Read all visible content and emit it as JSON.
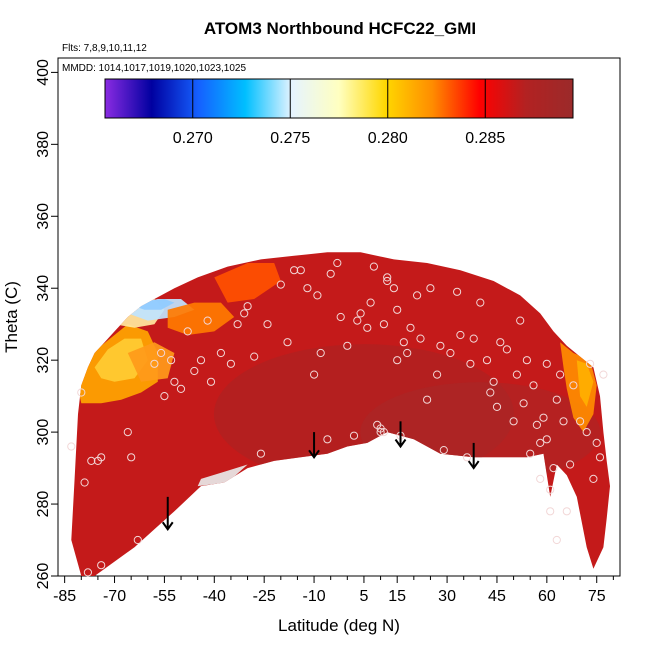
{
  "chart_data": {
    "type": "heatmap",
    "title": "ATOM3 Northbound HCFC22_GMI",
    "flights_note": "Flts: 7,8,9,10,11,12",
    "mmdd_note": "MMDD: 1014,1017,1019,1020,1023,1025",
    "xlabel": "Latitude (deg N)",
    "ylabel": "Theta (C)",
    "xlim": [
      -87,
      82
    ],
    "ylim": [
      260,
      404
    ],
    "x_ticks": [
      "-85",
      "-70",
      "-55",
      "-40",
      "-25",
      "-10",
      "5",
      "15",
      "30",
      "45",
      "60",
      "75"
    ],
    "x_tick_values": [
      -85,
      -70,
      -55,
      -40,
      -25,
      -10,
      5,
      15,
      30,
      45,
      60,
      75
    ],
    "y_ticks": [
      "260",
      "280",
      "300",
      "320",
      "340",
      "360",
      "380",
      "400"
    ],
    "y_tick_values": [
      260,
      280,
      300,
      320,
      340,
      360,
      380,
      400
    ],
    "colorbar": {
      "range": [
        0.2655,
        0.2895
      ],
      "ticks": [
        "0.270",
        "0.275",
        "0.280",
        "0.285"
      ],
      "tick_values": [
        0.27,
        0.275,
        0.28,
        0.285
      ],
      "colors": [
        "#8a2be2",
        "#0000a0",
        "#1560ff",
        "#00bfff",
        "#e6f4ff",
        "#ffffc0",
        "#ffd700",
        "#ff8c00",
        "#ff0000",
        "#b22222",
        "#9b2a2a"
      ]
    },
    "domain_outline": [
      [
        -83,
        270
      ],
      [
        -82,
        287
      ],
      [
        -81,
        305
      ],
      [
        -80,
        313
      ],
      [
        -78,
        318
      ],
      [
        -76,
        322
      ],
      [
        -73,
        325
      ],
      [
        -70,
        328
      ],
      [
        -66,
        332
      ],
      [
        -62,
        335
      ],
      [
        -58,
        337
      ],
      [
        -52,
        340
      ],
      [
        -45,
        343
      ],
      [
        -36,
        346
      ],
      [
        -26,
        348
      ],
      [
        -16,
        349
      ],
      [
        -6,
        350
      ],
      [
        4,
        350
      ],
      [
        14,
        348
      ],
      [
        24,
        347
      ],
      [
        34,
        345
      ],
      [
        44,
        342
      ],
      [
        52,
        338
      ],
      [
        58,
        333
      ],
      [
        62,
        328
      ],
      [
        66,
        324
      ],
      [
        70,
        321
      ],
      [
        74,
        318
      ],
      [
        76,
        310
      ],
      [
        77,
        300
      ],
      [
        78,
        292
      ],
      [
        79,
        285
      ],
      [
        78,
        276
      ],
      [
        77,
        268
      ],
      [
        74,
        262
      ],
      [
        72,
        268
      ],
      [
        69,
        282
      ],
      [
        66,
        288
      ],
      [
        63,
        291
      ],
      [
        61,
        282
      ],
      [
        59,
        294
      ],
      [
        54,
        293
      ],
      [
        46,
        293
      ],
      [
        38,
        293
      ],
      [
        28,
        294
      ],
      [
        20,
        298
      ],
      [
        12,
        300
      ],
      [
        6,
        297
      ],
      [
        0,
        296
      ],
      [
        -6,
        294
      ],
      [
        -14,
        293
      ],
      [
        -22,
        292
      ],
      [
        -30,
        290
      ],
      [
        -37,
        286
      ],
      [
        -44,
        285
      ],
      [
        -52,
        278
      ],
      [
        -58,
        273
      ],
      [
        -64,
        268
      ],
      [
        -70,
        264
      ],
      [
        -76,
        260
      ],
      [
        -80,
        260
      ]
    ],
    "fill_regions": [
      {
        "color": "#ffa500",
        "polygon": [
          [
            -81,
            312
          ],
          [
            -78,
            320
          ],
          [
            -74,
            324
          ],
          [
            -70,
            327
          ],
          [
            -66,
            330
          ],
          [
            -60,
            328
          ],
          [
            -57,
            322
          ],
          [
            -57,
            314
          ],
          [
            -62,
            311
          ],
          [
            -68,
            309
          ],
          [
            -74,
            308
          ],
          [
            -80,
            308
          ]
        ]
      },
      {
        "color": "#ffcc33",
        "polygon": [
          [
            -76,
            318
          ],
          [
            -72,
            323
          ],
          [
            -67,
            326
          ],
          [
            -62,
            326
          ],
          [
            -60,
            320
          ],
          [
            -64,
            315
          ],
          [
            -70,
            314
          ],
          [
            -74,
            315
          ]
        ]
      },
      {
        "color": "#ffe9a0",
        "polygon": [
          [
            -70,
            330
          ],
          [
            -66,
            333
          ],
          [
            -62,
            335
          ],
          [
            -58,
            337
          ],
          [
            -55,
            334
          ],
          [
            -58,
            330
          ],
          [
            -64,
            329
          ]
        ]
      },
      {
        "color": "#bfe4ff",
        "polygon": [
          [
            -66,
            333
          ],
          [
            -62,
            336
          ],
          [
            -57,
            337
          ],
          [
            -50,
            337
          ],
          [
            -46,
            334
          ],
          [
            -52,
            332
          ],
          [
            -60,
            331
          ]
        ]
      },
      {
        "color": "#8fcbff",
        "polygon": [
          [
            -64,
            335
          ],
          [
            -60,
            336.5
          ],
          [
            -55,
            337
          ],
          [
            -52,
            336
          ],
          [
            -56,
            334
          ],
          [
            -61,
            334
          ]
        ]
      },
      {
        "color": "#ff7a00",
        "polygon": [
          [
            -54,
            334
          ],
          [
            -46,
            336
          ],
          [
            -38,
            336
          ],
          [
            -34,
            332
          ],
          [
            -40,
            328
          ],
          [
            -48,
            327
          ],
          [
            -54,
            329
          ]
        ]
      },
      {
        "color": "#ff9a1a",
        "polygon": [
          [
            -66,
            322
          ],
          [
            -58,
            325
          ],
          [
            -52,
            322
          ],
          [
            -54,
            315
          ],
          [
            -62,
            314
          ]
        ]
      },
      {
        "color": "#ff5000",
        "polygon": [
          [
            -40,
            343
          ],
          [
            -30,
            347
          ],
          [
            -22,
            347
          ],
          [
            -20,
            342
          ],
          [
            -28,
            337
          ],
          [
            -36,
            336
          ]
        ]
      },
      {
        "color": "#ff8c00",
        "polygon": [
          [
            64,
            325
          ],
          [
            68,
            322
          ],
          [
            73,
            320
          ],
          [
            75,
            313
          ],
          [
            74,
            305
          ],
          [
            71,
            300
          ],
          [
            68,
            304
          ],
          [
            66,
            312
          ],
          [
            65,
            318
          ]
        ]
      },
      {
        "color": "#ffb000",
        "polygon": [
          [
            69,
            320
          ],
          [
            72,
            319
          ],
          [
            74,
            314
          ],
          [
            72,
            307
          ],
          [
            70,
            310
          ]
        ]
      },
      {
        "color": "#e8e8e8",
        "polygon": [
          [
            -45,
            285
          ],
          [
            -44,
            287
          ],
          [
            -37,
            289
          ],
          [
            -30,
            291
          ],
          [
            -36,
            286
          ]
        ]
      }
    ],
    "arrows": [
      {
        "x": -54,
        "y_top": 282,
        "y_bottom": 273
      },
      {
        "x": -10,
        "y_top": 300,
        "y_bottom": 293
      },
      {
        "x": 16,
        "y_top": 303,
        "y_bottom": 296
      },
      {
        "x": 38,
        "y_top": 297,
        "y_bottom": 290
      }
    ],
    "observations": [
      [
        -83,
        296
      ],
      [
        -80,
        311
      ],
      [
        -79,
        286
      ],
      [
        -77,
        292
      ],
      [
        -75,
        292
      ],
      [
        -74,
        293
      ],
      [
        -78,
        261
      ],
      [
        -74,
        263
      ],
      [
        -66,
        300
      ],
      [
        -65,
        293
      ],
      [
        -63,
        270
      ],
      [
        -58,
        319
      ],
      [
        -56,
        322
      ],
      [
        -55,
        310
      ],
      [
        -53,
        320
      ],
      [
        -52,
        314
      ],
      [
        -50,
        312
      ],
      [
        -48,
        328
      ],
      [
        -46,
        317
      ],
      [
        -44,
        320
      ],
      [
        -42,
        331
      ],
      [
        -41,
        314
      ],
      [
        -38,
        322
      ],
      [
        -35,
        319
      ],
      [
        -33,
        330
      ],
      [
        -31,
        333
      ],
      [
        -30,
        335
      ],
      [
        -28,
        321
      ],
      [
        -26,
        294
      ],
      [
        -24,
        330
      ],
      [
        -20,
        341
      ],
      [
        -18,
        325
      ],
      [
        -16,
        345
      ],
      [
        -14,
        345
      ],
      [
        -12,
        340
      ],
      [
        -10,
        316
      ],
      [
        -9,
        338
      ],
      [
        -8,
        322
      ],
      [
        -6,
        298
      ],
      [
        -5,
        344
      ],
      [
        -3,
        347
      ],
      [
        -2,
        332
      ],
      [
        0,
        324
      ],
      [
        2,
        299
      ],
      [
        3,
        331
      ],
      [
        4,
        333
      ],
      [
        6,
        329
      ],
      [
        7,
        336
      ],
      [
        8,
        346
      ],
      [
        9,
        302
      ],
      [
        10,
        300
      ],
      [
        10,
        301
      ],
      [
        11,
        300
      ],
      [
        11,
        330
      ],
      [
        12,
        342
      ],
      [
        12,
        343
      ],
      [
        14,
        340
      ],
      [
        15,
        320
      ],
      [
        15,
        334
      ],
      [
        16,
        299
      ],
      [
        17,
        325
      ],
      [
        18,
        322
      ],
      [
        19,
        329
      ],
      [
        21,
        338
      ],
      [
        22,
        326
      ],
      [
        24,
        309
      ],
      [
        25,
        340
      ],
      [
        27,
        316
      ],
      [
        28,
        324
      ],
      [
        29,
        295
      ],
      [
        31,
        322
      ],
      [
        33,
        339
      ],
      [
        34,
        327
      ],
      [
        36,
        293
      ],
      [
        37,
        319
      ],
      [
        38,
        326
      ],
      [
        40,
        336
      ],
      [
        42,
        320
      ],
      [
        43,
        311
      ],
      [
        44,
        314
      ],
      [
        45,
        307
      ],
      [
        46,
        325
      ],
      [
        48,
        323
      ],
      [
        50,
        303
      ],
      [
        51,
        316
      ],
      [
        52,
        331
      ],
      [
        53,
        308
      ],
      [
        54,
        320
      ],
      [
        55,
        294
      ],
      [
        56,
        313
      ],
      [
        57,
        302
      ],
      [
        58,
        297
      ],
      [
        58,
        287
      ],
      [
        59,
        304
      ],
      [
        60,
        319
      ],
      [
        60,
        298
      ],
      [
        61,
        284
      ],
      [
        62,
        290
      ],
      [
        63,
        309
      ],
      [
        64,
        316
      ],
      [
        65,
        303
      ],
      [
        66,
        278
      ],
      [
        67,
        291
      ],
      [
        68,
        313
      ],
      [
        70,
        303
      ],
      [
        72,
        300
      ],
      [
        73,
        319
      ],
      [
        74,
        287
      ],
      [
        75,
        297
      ],
      [
        76,
        293
      ],
      [
        77,
        316
      ],
      [
        61,
        278
      ],
      [
        63,
        270
      ]
    ]
  }
}
